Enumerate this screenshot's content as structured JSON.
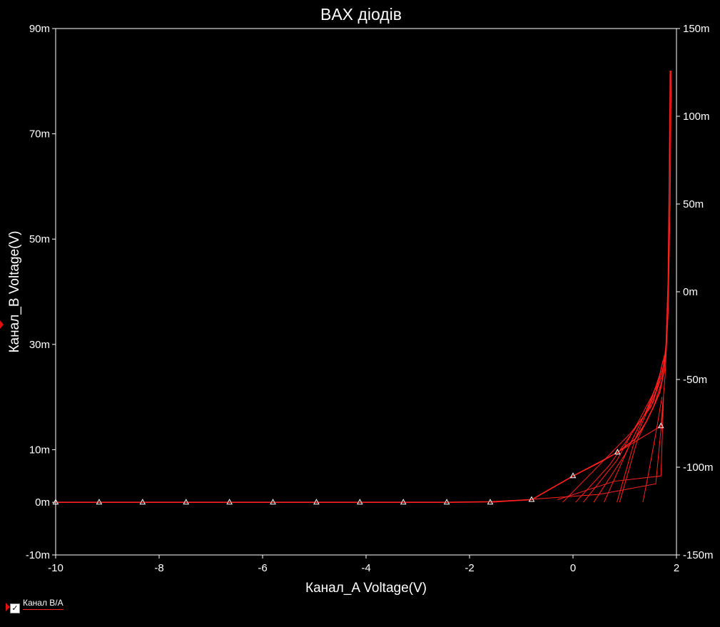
{
  "chart_data": {
    "type": "line",
    "title": "BAX діодів",
    "xlabel": "Канал_A Voltage(V)",
    "ylabel": "Канал_B Voltage(V)",
    "xlim": [
      -10,
      2
    ],
    "ylim": [
      -10,
      90
    ],
    "y2lim": [
      -150,
      150
    ],
    "x_ticks": [
      "-10",
      "-8",
      "-6",
      "-4",
      "-2",
      "0",
      "2"
    ],
    "x_tick_values": [
      -10,
      -8,
      -6,
      -4,
      -2,
      0,
      2
    ],
    "y_ticks": [
      "-10m",
      "0m",
      "10m",
      "30m",
      "50m",
      "70m",
      "90m"
    ],
    "y_tick_values": [
      -10,
      0,
      10,
      30,
      50,
      70,
      90
    ],
    "y2_ticks": [
      "-150m",
      "-100m",
      "-50m",
      "0m",
      "50m",
      "100m",
      "150m"
    ],
    "y2_tick_values": [
      -150,
      -100,
      -50,
      0,
      50,
      100,
      150
    ],
    "series": [
      {
        "name": "Канал B/A",
        "color": "#ff2020",
        "x": [
          -10,
          -9.16,
          -8.32,
          -7.48,
          -6.64,
          -5.8,
          -4.96,
          -4.12,
          -3.28,
          -2.44,
          -1.6,
          -0.8,
          0,
          0.5,
          0.86,
          1.2,
          1.4,
          1.55,
          1.68,
          1.76,
          1.8,
          1.84,
          1.86,
          1.88
        ],
        "values": [
          0,
          0,
          0,
          0,
          0,
          0,
          0,
          0,
          0,
          0,
          0.1,
          0.5,
          5,
          7.5,
          9.5,
          12,
          15,
          18,
          21,
          25,
          30,
          42,
          60,
          82
        ]
      }
    ],
    "markers": {
      "x": [
        -10,
        -9.16,
        -8.32,
        -7.48,
        -6.64,
        -5.8,
        -4.96,
        -4.12,
        -3.28,
        -2.44,
        -1.6,
        -0.8,
        0,
        0.86,
        1.7
      ],
      "y": [
        0,
        0,
        0,
        0,
        0,
        0,
        0,
        0,
        0,
        0,
        0,
        0.5,
        5,
        9.5,
        14.5
      ]
    },
    "sweep_lines": [
      [
        [
          -1.6,
          0
        ],
        [
          -0.8,
          0.5
        ],
        [
          0,
          5
        ],
        [
          0.86,
          9.5
        ],
        [
          1.7,
          14.5
        ],
        [
          1.78,
          24
        ],
        [
          1.84,
          36
        ],
        [
          1.88,
          58
        ],
        [
          1.9,
          82
        ]
      ],
      [
        [
          -0.2,
          0
        ],
        [
          0.5,
          7
        ],
        [
          1.1,
          13
        ],
        [
          1.5,
          18
        ],
        [
          1.72,
          24
        ],
        [
          1.8,
          30
        ]
      ],
      [
        [
          0.05,
          0
        ],
        [
          0.7,
          7
        ],
        [
          1.2,
          14
        ],
        [
          1.55,
          19
        ],
        [
          1.75,
          26
        ]
      ],
      [
        [
          0.2,
          0
        ],
        [
          0.85,
          8
        ],
        [
          1.3,
          16
        ],
        [
          1.62,
          22
        ],
        [
          1.77,
          28
        ]
      ],
      [
        [
          0.4,
          0
        ],
        [
          1.0,
          9
        ],
        [
          1.4,
          17
        ],
        [
          1.68,
          24
        ]
      ],
      [
        [
          0.6,
          0
        ],
        [
          1.1,
          11
        ],
        [
          1.5,
          19
        ],
        [
          1.7,
          25
        ]
      ],
      [
        [
          0.85,
          0
        ],
        [
          1.2,
          12
        ],
        [
          1.6,
          21
        ],
        [
          1.74,
          27
        ]
      ],
      [
        [
          0.9,
          0
        ],
        [
          1.25,
          12
        ],
        [
          1.55,
          18
        ],
        [
          1.72,
          23
        ]
      ],
      [
        [
          1.35,
          0
        ],
        [
          1.45,
          5
        ],
        [
          1.6,
          13
        ],
        [
          1.72,
          20
        ]
      ],
      [
        [
          -0.3,
          0.5
        ],
        [
          0.8,
          4
        ],
        [
          1.7,
          5
        ],
        [
          1.75,
          20
        ]
      ],
      [
        [
          -1.6,
          0
        ],
        [
          0.5,
          1.5
        ],
        [
          1.6,
          3.5
        ],
        [
          1.74,
          18
        ]
      ]
    ]
  },
  "legend": {
    "checkbox_mark": "✓",
    "label": "Канал B/A"
  }
}
